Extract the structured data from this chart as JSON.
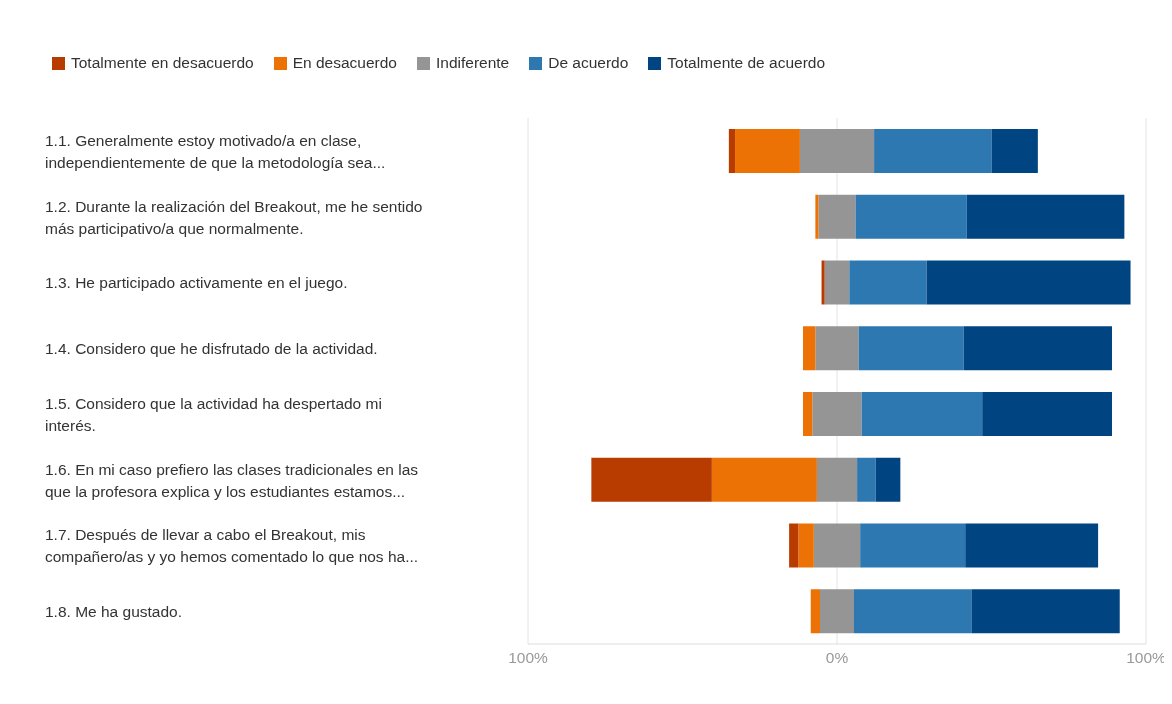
{
  "chart_data": {
    "type": "bar",
    "orientation": "horizontal",
    "stacked": true,
    "categories": [
      "1.1. Generalmente estoy motivado/a en clase, independientemente de que la metodología sea...",
      "1.2. Durante la realización del Breakout, me he sentido más participativo/a que normalmente.",
      "1.3. He participado activamente en el juego.",
      "1.4. Considero que he disfrutado de la actividad.",
      "1.5. Considero que la actividad ha despertado mi interés.",
      "1.6. En mi caso prefiero las clases tradicionales en las que la profesora explica y los estudiantes estamos...",
      "1.7. Después de llevar a cabo el Breakout, mis compañero/as y yo hemos comentado lo que nos ha...",
      "1.8. Me ha gustado."
    ],
    "series": [
      {
        "color": "#959595",
        "values": [
          -12,
          -6,
          -4,
          -7,
          -8,
          -6.5,
          -7.5,
          -5.5
        ]
      },
      {
        "name": "En desacuerdo",
        "color": "#ec7206",
        "values": [
          -21,
          -1,
          0,
          -4,
          -3,
          -34,
          -5,
          -3
        ]
      },
      {
        "name": "Totalmente en desacuerdo",
        "color": "#b83c00",
        "values": [
          -2,
          0,
          -1,
          0,
          0,
          -39,
          -3,
          0
        ]
      },
      {
        "name": "Indiferente",
        "color": "#959595",
        "values": [
          12,
          6,
          4,
          7,
          8,
          6.5,
          7.5,
          5.5
        ]
      },
      {
        "name": "De acuerdo",
        "color": "#2e78b2",
        "values": [
          38,
          36,
          25,
          34,
          39,
          6,
          34,
          38
        ]
      },
      {
        "name": "Totalmente de acuerdo",
        "color": "#004481",
        "values": [
          15,
          51,
          66,
          48,
          42,
          8,
          43,
          48
        ]
      }
    ],
    "xlim": [
      -100,
      100
    ],
    "xticks": [
      {
        "value": -100,
        "label": "100%"
      },
      {
        "value": 0,
        "label": "0%"
      },
      {
        "value": 100,
        "label": "100%"
      }
    ],
    "grid": "x",
    "legend": "top left"
  }
}
